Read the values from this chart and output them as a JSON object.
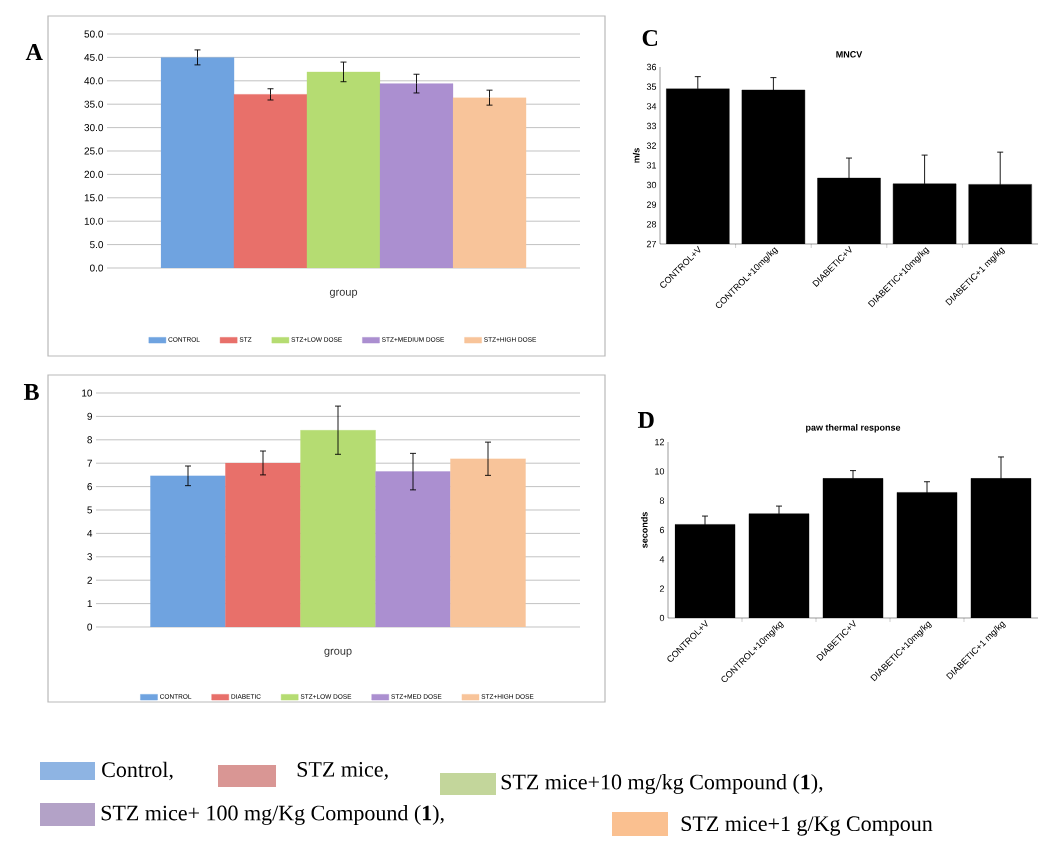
{
  "chart_data": [
    {
      "type": "bar",
      "annotations": [
        "A"
      ],
      "xlabel": "group",
      "categories": [
        null
      ],
      "grid": "y",
      "legend": "bottom",
      "ylim": [
        0,
        50
      ],
      "yticks": [
        {
          "value": 0,
          "label": "0.0"
        },
        {
          "value": 5,
          "label": "5.0"
        },
        {
          "value": 10,
          "label": "10.0"
        },
        {
          "value": 15,
          "label": "15.0"
        },
        {
          "value": 20,
          "label": "20.0"
        },
        {
          "value": 25,
          "label": "25.0"
        },
        {
          "value": 30,
          "label": "30.0"
        },
        {
          "value": 35,
          "label": "35.0"
        },
        {
          "value": 40,
          "label": "40.0"
        },
        {
          "value": 45,
          "label": "45.0"
        },
        {
          "value": 50,
          "label": "50.0"
        }
      ],
      "series": [
        {
          "name": "CONTROL",
          "color": "#6fa3e0",
          "values": [
            45.0
          ],
          "errors": [
            1.6
          ]
        },
        {
          "name": "STZ",
          "color": "#e8706a",
          "values": [
            37.1
          ],
          "errors": [
            1.2
          ]
        },
        {
          "name": "STZ+LOW DOSE",
          "color": "#b5dc72",
          "values": [
            41.9
          ],
          "errors": [
            2.1
          ]
        },
        {
          "name": "STZ+MEDIUM DOSE",
          "color": "#ab8fd0",
          "values": [
            39.4
          ],
          "errors": [
            2.0
          ]
        },
        {
          "name": "STZ+HIGH DOSE",
          "color": "#f8c49a",
          "values": [
            36.4
          ],
          "errors": [
            1.6
          ]
        }
      ]
    },
    {
      "type": "bar",
      "annotations": [
        "B"
      ],
      "xlabel": "group",
      "categories": [
        null
      ],
      "grid": "y",
      "legend": "bottom",
      "ylim": [
        0,
        10
      ],
      "yticks": [
        0,
        1,
        2,
        3,
        4,
        5,
        6,
        7,
        8,
        9,
        10
      ],
      "series": [
        {
          "name": "CONTROL",
          "color": "#6fa3e0",
          "values": [
            6.46
          ],
          "errors": [
            0.42
          ]
        },
        {
          "name": "DIABETIC",
          "color": "#e8706a",
          "values": [
            7.01
          ],
          "errors": [
            0.51
          ]
        },
        {
          "name": "STZ+LOW DOSE",
          "color": "#b5dc72",
          "values": [
            8.41
          ],
          "errors": [
            1.03
          ]
        },
        {
          "name": "STZ+MED DOSE",
          "color": "#ab8fd0",
          "values": [
            6.64
          ],
          "errors": [
            0.78
          ]
        },
        {
          "name": "STZ+HIGH DOSE",
          "color": "#f8c49a",
          "values": [
            7.19
          ],
          "errors": [
            0.71
          ]
        }
      ]
    },
    {
      "type": "bar",
      "title": "MNCV",
      "annotations": [
        "C"
      ],
      "ylabel": "m/s",
      "categories": [
        "CONTROL+V",
        "CONTROL+10mg/kg",
        "DIABETIC+V",
        "DIABETIC+10mg/kg",
        "DIABETIC+1 mg/kg"
      ],
      "values": [
        34.9,
        34.83,
        30.35,
        30.06,
        30.03
      ],
      "errors": [
        0.61,
        0.63,
        1.02,
        1.46,
        1.64
      ],
      "color": "#000000",
      "ylim": [
        27,
        36
      ],
      "yticks": [
        27,
        28,
        29,
        30,
        31,
        32,
        33,
        34,
        35,
        36
      ]
    },
    {
      "type": "bar",
      "title": "paw thermal response",
      "annotations": [
        "D"
      ],
      "ylabel": "seconds",
      "categories": [
        "CONTROL+V",
        "CONTROL+10mg/kg",
        "DIABETIC+V",
        "DIABETIC+10mg/kg",
        "DIABETIC+1 mg/kg"
      ],
      "values": [
        6.38,
        7.11,
        9.52,
        8.56,
        9.52
      ],
      "errors": [
        0.57,
        0.52,
        0.53,
        0.73,
        1.46
      ],
      "color": "#000000",
      "ylim": [
        0,
        12
      ],
      "yticks": [
        0,
        2,
        4,
        6,
        8,
        10,
        12
      ]
    },
    {
      "type": "other",
      "annotations": [
        "Control,",
        "STZ mice,",
        "STZ mice+10 mg/kg Compound (**1**),",
        "STZ mice+ 100 mg/Kg Compound (**1**),",
        "STZ mice+1 g/Kg Compoun"
      ],
      "colors": [
        "#8eb4e3",
        "#d99694",
        "#c3d69b",
        "#b3a2c7",
        "#fac090"
      ]
    }
  ]
}
